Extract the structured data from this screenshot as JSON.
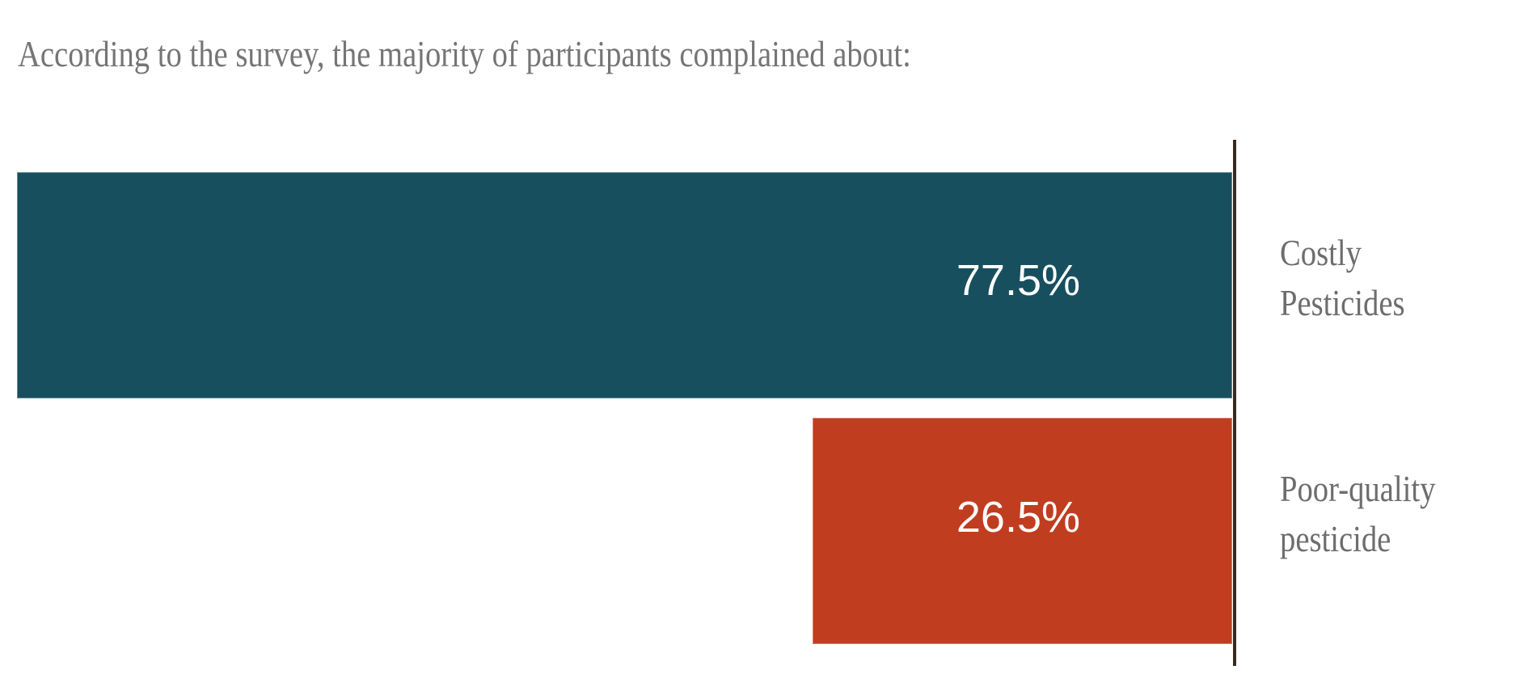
{
  "page": {
    "background_color": "#ffffff"
  },
  "chart_data": {
    "type": "bar",
    "orientation": "horizontal",
    "title": "According to the survey, the majority of participants complained about:",
    "categories": [
      "Costly Pesticides",
      "Poor-quality pesticide"
    ],
    "categories_wrapped": [
      [
        "Costly",
        "Pesticides"
      ],
      [
        "Poor-quality",
        "pesticide"
      ]
    ],
    "values": [
      77.5,
      26.5
    ],
    "value_labels": [
      "77.5%",
      "26.5%"
    ],
    "unit": "%",
    "xlim": [
      0,
      77.5
    ],
    "grid": false,
    "legend": false,
    "value_label_position": "inside-right",
    "category_label_position": "right-of-bar",
    "bar_colors": [
      "#174f5e",
      "#c03d20"
    ],
    "axis_line_color": "#3a2a1d",
    "title_color": "#757575",
    "category_label_color": "#6d6d6d",
    "value_label_color": "#ffffff"
  }
}
